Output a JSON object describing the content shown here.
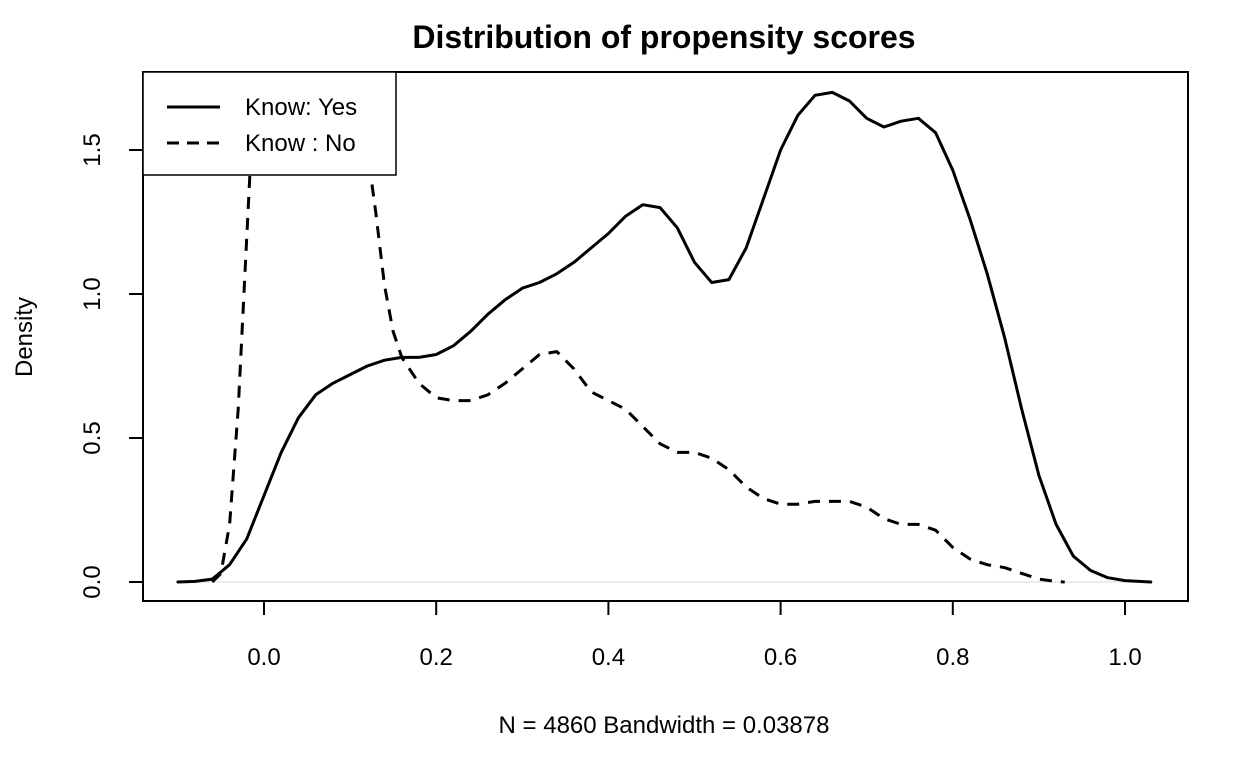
{
  "chart_data": {
    "type": "line",
    "title": "Distribution of propensity scores",
    "xlabel": "N = 4860   Bandwidth = 0.03878",
    "ylabel": "Density",
    "xlim": [
      -0.1,
      1.03
    ],
    "ylim": [
      0,
      1.7
    ],
    "x_ticks": [
      "0.0",
      "0.2",
      "0.4",
      "0.6",
      "0.8",
      "1.0"
    ],
    "y_ticks": [
      "0.0",
      "0.5",
      "1.0",
      "1.5"
    ],
    "grid": false,
    "legend_position": "top-left",
    "series": [
      {
        "name": "Know: Yes",
        "line_style": "solid",
        "points": [
          [
            -0.1,
            0.0
          ],
          [
            -0.08,
            0.002
          ],
          [
            -0.06,
            0.01
          ],
          [
            -0.04,
            0.06
          ],
          [
            -0.02,
            0.15
          ],
          [
            0.0,
            0.3
          ],
          [
            0.02,
            0.45
          ],
          [
            0.04,
            0.57
          ],
          [
            0.06,
            0.65
          ],
          [
            0.08,
            0.69
          ],
          [
            0.1,
            0.72
          ],
          [
            0.12,
            0.75
          ],
          [
            0.14,
            0.77
          ],
          [
            0.16,
            0.78
          ],
          [
            0.18,
            0.78
          ],
          [
            0.2,
            0.79
          ],
          [
            0.22,
            0.82
          ],
          [
            0.24,
            0.87
          ],
          [
            0.26,
            0.93
          ],
          [
            0.28,
            0.98
          ],
          [
            0.3,
            1.02
          ],
          [
            0.32,
            1.04
          ],
          [
            0.34,
            1.07
          ],
          [
            0.36,
            1.11
          ],
          [
            0.38,
            1.16
          ],
          [
            0.4,
            1.21
          ],
          [
            0.42,
            1.27
          ],
          [
            0.44,
            1.31
          ],
          [
            0.46,
            1.3
          ],
          [
            0.48,
            1.23
          ],
          [
            0.5,
            1.11
          ],
          [
            0.52,
            1.04
          ],
          [
            0.54,
            1.05
          ],
          [
            0.56,
            1.16
          ],
          [
            0.58,
            1.33
          ],
          [
            0.6,
            1.5
          ],
          [
            0.62,
            1.62
          ],
          [
            0.64,
            1.69
          ],
          [
            0.66,
            1.7
          ],
          [
            0.68,
            1.67
          ],
          [
            0.7,
            1.61
          ],
          [
            0.72,
            1.58
          ],
          [
            0.74,
            1.6
          ],
          [
            0.76,
            1.61
          ],
          [
            0.78,
            1.56
          ],
          [
            0.8,
            1.43
          ],
          [
            0.82,
            1.26
          ],
          [
            0.84,
            1.07
          ],
          [
            0.86,
            0.85
          ],
          [
            0.88,
            0.6
          ],
          [
            0.9,
            0.37
          ],
          [
            0.92,
            0.2
          ],
          [
            0.94,
            0.09
          ],
          [
            0.96,
            0.04
          ],
          [
            0.98,
            0.015
          ],
          [
            1.0,
            0.005
          ],
          [
            1.03,
            0.0
          ]
        ]
      },
      {
        "name": "Know : No",
        "line_style": "dashed",
        "points": [
          [
            -0.06,
            0.0
          ],
          [
            -0.05,
            0.03
          ],
          [
            -0.04,
            0.2
          ],
          [
            -0.03,
            0.6
          ],
          [
            -0.02,
            1.2
          ],
          [
            -0.015,
            1.5
          ],
          [
            0.12,
            1.5
          ],
          [
            0.13,
            1.28
          ],
          [
            0.14,
            1.03
          ],
          [
            0.15,
            0.87
          ],
          [
            0.16,
            0.78
          ],
          [
            0.18,
            0.69
          ],
          [
            0.2,
            0.64
          ],
          [
            0.22,
            0.63
          ],
          [
            0.24,
            0.63
          ],
          [
            0.26,
            0.65
          ],
          [
            0.28,
            0.69
          ],
          [
            0.3,
            0.74
          ],
          [
            0.32,
            0.79
          ],
          [
            0.34,
            0.8
          ],
          [
            0.36,
            0.74
          ],
          [
            0.38,
            0.66
          ],
          [
            0.4,
            0.63
          ],
          [
            0.42,
            0.6
          ],
          [
            0.44,
            0.54
          ],
          [
            0.46,
            0.48
          ],
          [
            0.48,
            0.45
          ],
          [
            0.5,
            0.45
          ],
          [
            0.52,
            0.43
          ],
          [
            0.54,
            0.39
          ],
          [
            0.56,
            0.33
          ],
          [
            0.58,
            0.29
          ],
          [
            0.6,
            0.27
          ],
          [
            0.62,
            0.27
          ],
          [
            0.64,
            0.28
          ],
          [
            0.66,
            0.28
          ],
          [
            0.68,
            0.28
          ],
          [
            0.7,
            0.26
          ],
          [
            0.72,
            0.22
          ],
          [
            0.74,
            0.2
          ],
          [
            0.76,
            0.2
          ],
          [
            0.78,
            0.18
          ],
          [
            0.8,
            0.12
          ],
          [
            0.82,
            0.08
          ],
          [
            0.84,
            0.06
          ],
          [
            0.86,
            0.05
          ],
          [
            0.88,
            0.03
          ],
          [
            0.9,
            0.01
          ],
          [
            0.92,
            0.002
          ],
          [
            0.93,
            0.0
          ]
        ]
      }
    ]
  }
}
